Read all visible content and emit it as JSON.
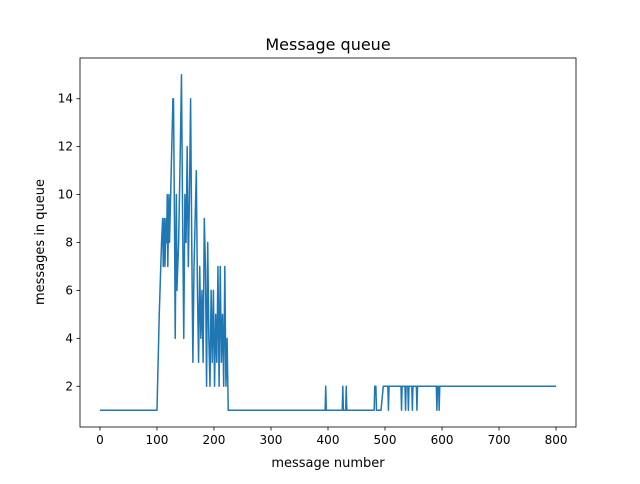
{
  "chart_data": {
    "type": "line",
    "title": "Message queue",
    "xlabel": "message number",
    "ylabel": "messages in queue",
    "xlim": [
      -35,
      835
    ],
    "ylim": [
      0.3,
      15.7
    ],
    "xticks": [
      0,
      100,
      200,
      300,
      400,
      500,
      600,
      700,
      800
    ],
    "yticks": [
      2,
      4,
      6,
      8,
      10,
      12,
      14
    ],
    "grid": false,
    "legend": "none",
    "colors": {
      "line": "#1f77b4"
    },
    "series": [
      {
        "points": [
          [
            0,
            1
          ],
          [
            100,
            1
          ],
          [
            104,
            5
          ],
          [
            108,
            8
          ],
          [
            110,
            9
          ],
          [
            111,
            7
          ],
          [
            113,
            9
          ],
          [
            114,
            7
          ],
          [
            116,
            9
          ],
          [
            117,
            8
          ],
          [
            118,
            10
          ],
          [
            119,
            7
          ],
          [
            121,
            10
          ],
          [
            122,
            8
          ],
          [
            124,
            10
          ],
          [
            126,
            12
          ],
          [
            128,
            14
          ],
          [
            129,
            14
          ],
          [
            131,
            8
          ],
          [
            132,
            4
          ],
          [
            134,
            10
          ],
          [
            135,
            6
          ],
          [
            138,
            8
          ],
          [
            141,
            12
          ],
          [
            143,
            15
          ],
          [
            145,
            9
          ],
          [
            147,
            4
          ],
          [
            149,
            10
          ],
          [
            151,
            8
          ],
          [
            153,
            12
          ],
          [
            155,
            7
          ],
          [
            157,
            10
          ],
          [
            159,
            14
          ],
          [
            161,
            8
          ],
          [
            163,
            3
          ],
          [
            165,
            7
          ],
          [
            167,
            9
          ],
          [
            169,
            11
          ],
          [
            171,
            6
          ],
          [
            173,
            3
          ],
          [
            175,
            7
          ],
          [
            177,
            4
          ],
          [
            179,
            6
          ],
          [
            181,
            3
          ],
          [
            183,
            9
          ],
          [
            185,
            7
          ],
          [
            187,
            2
          ],
          [
            189,
            8
          ],
          [
            191,
            4
          ],
          [
            193,
            2
          ],
          [
            195,
            6
          ],
          [
            197,
            3
          ],
          [
            199,
            6
          ],
          [
            201,
            2
          ],
          [
            203,
            5
          ],
          [
            205,
            3
          ],
          [
            207,
            7
          ],
          [
            209,
            2
          ],
          [
            211,
            7
          ],
          [
            213,
            3
          ],
          [
            215,
            5
          ],
          [
            217,
            2
          ],
          [
            219,
            7
          ],
          [
            221,
            2
          ],
          [
            223,
            4
          ],
          [
            225,
            1
          ],
          [
            395,
            1
          ],
          [
            396,
            2
          ],
          [
            397,
            1
          ],
          [
            425,
            1
          ],
          [
            426,
            2
          ],
          [
            427,
            1
          ],
          [
            431,
            1
          ],
          [
            432,
            2
          ],
          [
            433,
            1
          ],
          [
            481,
            1
          ],
          [
            482,
            2
          ],
          [
            484,
            2
          ],
          [
            485,
            1
          ],
          [
            493,
            1
          ],
          [
            497,
            2
          ],
          [
            505,
            2
          ],
          [
            506,
            1
          ],
          [
            507,
            2
          ],
          [
            528,
            2
          ],
          [
            529,
            1
          ],
          [
            530,
            2
          ],
          [
            535,
            2
          ],
          [
            536,
            1
          ],
          [
            537,
            2
          ],
          [
            540,
            2
          ],
          [
            541,
            1
          ],
          [
            542,
            2
          ],
          [
            547,
            2
          ],
          [
            548,
            1
          ],
          [
            549,
            2
          ],
          [
            555,
            2
          ],
          [
            556,
            1
          ],
          [
            557,
            2
          ],
          [
            590,
            2
          ],
          [
            591,
            1
          ],
          [
            592,
            2
          ],
          [
            594,
            2
          ],
          [
            595,
            1
          ],
          [
            596,
            2
          ],
          [
            800,
            2
          ]
        ]
      }
    ]
  }
}
